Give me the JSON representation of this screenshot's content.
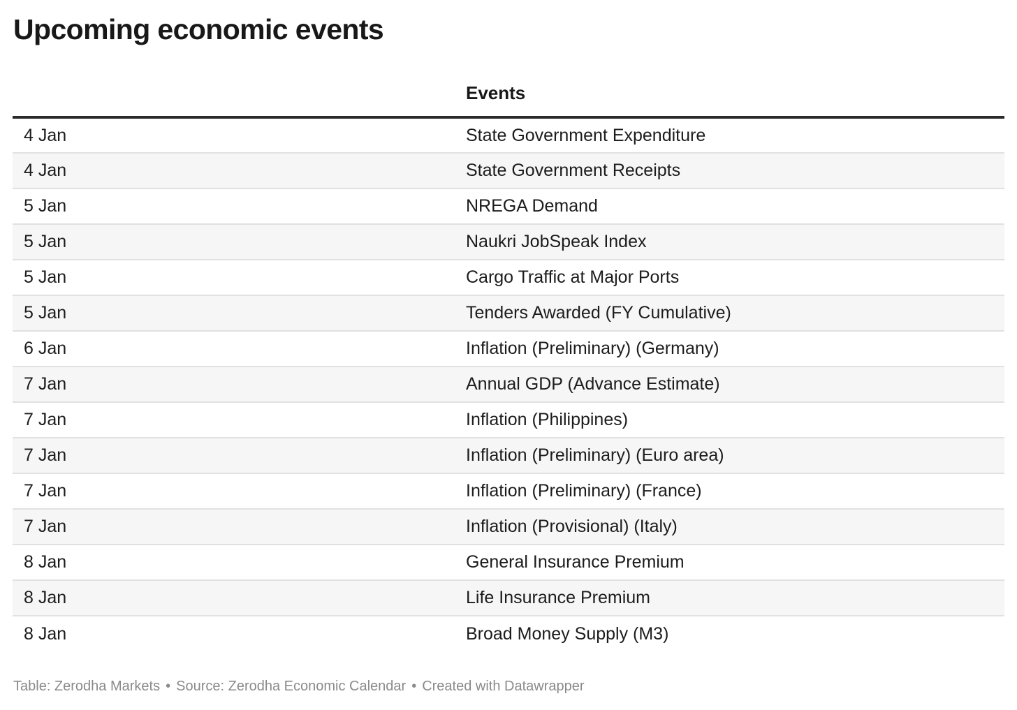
{
  "title": "Upcoming economic events",
  "table": {
    "headers": [
      "",
      "Events"
    ],
    "rows": [
      {
        "date": "4 Jan",
        "event": "State Government Expenditure"
      },
      {
        "date": "4 Jan",
        "event": "State Government Receipts"
      },
      {
        "date": "5 Jan",
        "event": "NREGA Demand"
      },
      {
        "date": "5 Jan",
        "event": "Naukri JobSpeak Index"
      },
      {
        "date": "5 Jan",
        "event": "Cargo Traffic at Major Ports"
      },
      {
        "date": "5 Jan",
        "event": "Tenders Awarded (FY Cumulative)"
      },
      {
        "date": "6 Jan",
        "event": "Inflation (Preliminary) (Germany)"
      },
      {
        "date": "7 Jan",
        "event": "Annual GDP (Advance Estimate)"
      },
      {
        "date": "7 Jan",
        "event": "Inflation (Philippines)"
      },
      {
        "date": "7 Jan",
        "event": "Inflation (Preliminary) (Euro area)"
      },
      {
        "date": "7 Jan",
        "event": "Inflation (Preliminary) (France)"
      },
      {
        "date": "7 Jan",
        "event": "Inflation (Provisional) (Italy)"
      },
      {
        "date": "8 Jan",
        "event": "General Insurance Premium"
      },
      {
        "date": "8 Jan",
        "event": "Life Insurance Premium"
      },
      {
        "date": "8 Jan",
        "event": "Broad Money Supply (M3)"
      }
    ]
  },
  "footer": {
    "table_credit": "Table: Zerodha Markets",
    "separator": "•",
    "source": "Source: Zerodha Economic Calendar",
    "created_with": "Created with Datawrapper"
  },
  "colors": {
    "title": "#181818",
    "header_rule": "#2b2b2b",
    "row_divider": "#e1e1e1",
    "row_stripe": "#f6f6f6",
    "footer_text": "#8a8a8a"
  }
}
